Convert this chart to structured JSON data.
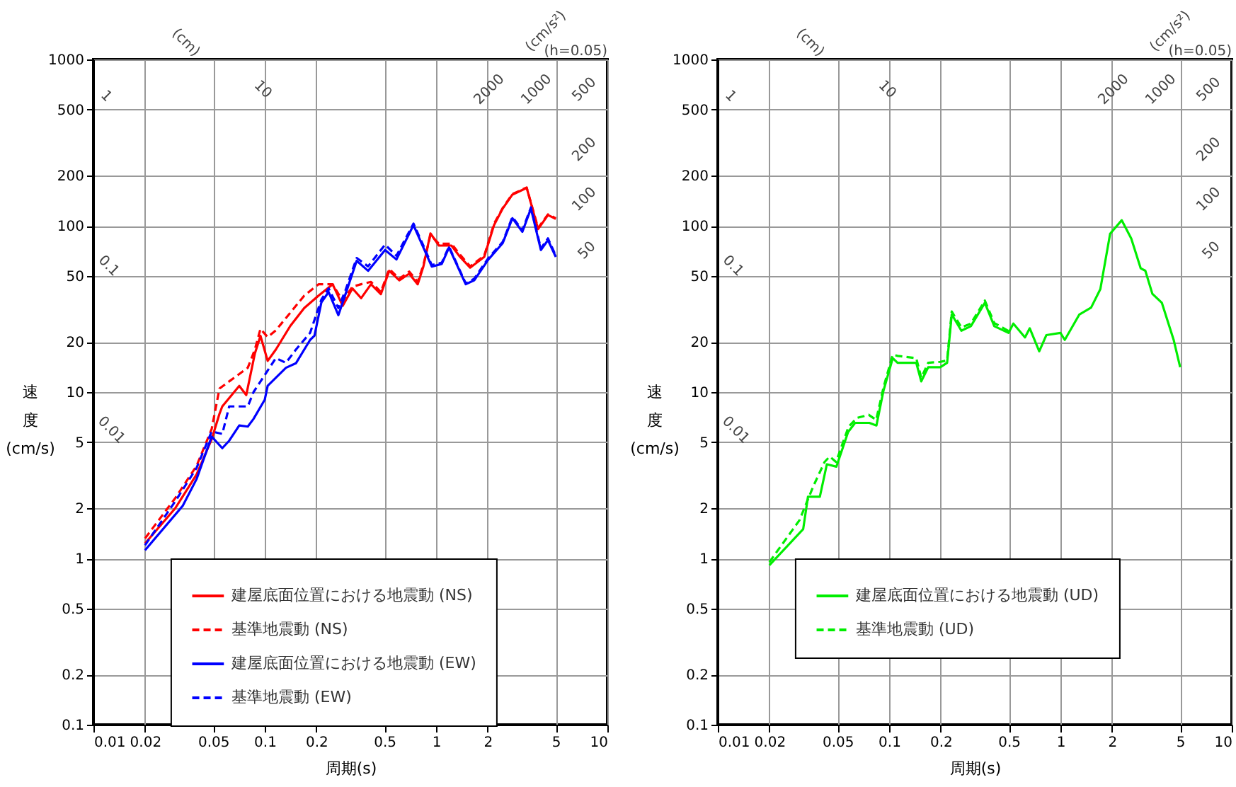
{
  "chart_data": [
    {
      "type": "line",
      "xlabel": "周期(s)",
      "ylabel": "速度(cm/s)",
      "log": "xy",
      "grid": true,
      "legend": "bottom",
      "xlim": [
        0.01,
        10
      ],
      "xticks": [
        0.01,
        0.02,
        0.05,
        0.1,
        0.2,
        0.5,
        1,
        2,
        5,
        10
      ],
      "ylim": [
        0.1,
        1000
      ],
      "yticks": [
        0.1,
        0.2,
        0.5,
        1,
        2,
        5,
        10,
        20,
        50,
        100,
        200,
        500,
        1000
      ],
      "annotations": [
        "(cm)",
        "(cm/s²)",
        "(h=0.05)",
        "1",
        "10",
        "0.1",
        "0.01",
        "2000",
        "1000",
        "500",
        "200",
        "100",
        "50"
      ],
      "series": [
        {
          "name": "建屋底面位置における地震動 (NS)",
          "color": "#ff0000",
          "line_style": "solid",
          "x": [
            0.02,
            0.03,
            0.04,
            0.049,
            0.0544,
            0.0565,
            0.071,
            0.078,
            0.0875,
            0.0944,
            0.104,
            0.116,
            0.141,
            0.17,
            0.206,
            0.249,
            0.285,
            0.325,
            0.365,
            0.417,
            0.476,
            0.533,
            0.61,
            0.697,
            0.781,
            0.843,
            0.927,
            1.04,
            1.23,
            1.38,
            1.58,
            1.91,
            2.18,
            2.45,
            2.79,
            3.38,
            3.94,
            4.5,
            5
          ],
          "values": [
            1.23,
            2.0,
            3.2,
            5.2,
            7.4,
            8.2,
            10.9,
            9.6,
            17,
            21.8,
            15.4,
            18,
            25,
            32,
            38,
            44.5,
            33,
            42,
            36.7,
            44.5,
            38.8,
            53.6,
            47,
            51.5,
            44.5,
            56.8,
            90,
            76,
            76,
            65,
            56,
            65,
            101,
            127,
            154,
            169,
            95.5,
            116,
            110
          ]
        },
        {
          "name": "基準地震動 (NS)",
          "color": "#ff0000",
          "line_style": "dashed",
          "x": [
            0.02,
            0.03,
            0.04,
            0.049,
            0.0544,
            0.062,
            0.0796,
            0.0875,
            0.0944,
            0.104,
            0.116,
            0.141,
            0.17,
            0.206,
            0.249,
            0.285,
            0.325,
            0.365,
            0.417,
            0.476,
            0.533,
            0.61,
            0.697,
            0.781,
            0.843,
            0.927,
            1.04,
            1.23,
            1.38,
            1.58,
            1.91,
            2.18,
            2.45,
            2.79,
            3.38,
            3.94,
            4.5,
            5
          ],
          "values": [
            1.32,
            2.3,
            3.6,
            6,
            10.5,
            11.6,
            14,
            18,
            24,
            21.4,
            23.5,
            30,
            38,
            44.5,
            44.5,
            35.3,
            43,
            44.5,
            46,
            40,
            55,
            48,
            53,
            46,
            58,
            88,
            78,
            78,
            67,
            57,
            66,
            103,
            128,
            155,
            170,
            97,
            117,
            111
          ]
        },
        {
          "name": "建屋底面位置における地震動 (EW)",
          "color": "#0000ff",
          "line_style": "solid",
          "x": [
            0.02,
            0.0332,
            0.04,
            0.049,
            0.0565,
            0.062,
            0.071,
            0.0796,
            0.086,
            0.1,
            0.104,
            0.133,
            0.152,
            0.184,
            0.195,
            0.214,
            0.236,
            0.269,
            0.296,
            0.344,
            0.401,
            0.504,
            0.587,
            0.738,
            0.843,
            0.944,
            1.08,
            1.19,
            1.49,
            1.67,
            2.02,
            2.45,
            2.79,
            3.19,
            3.58,
            4.09,
            4.5,
            5
          ],
          "values": [
            1.12,
            2.07,
            3.0,
            5.4,
            4.6,
            5.1,
            6.3,
            6.2,
            6.9,
            9.0,
            10.9,
            14,
            14.9,
            20.6,
            21.8,
            34.6,
            40,
            29,
            38.8,
            61.5,
            53.6,
            71.5,
            62.7,
            101,
            74,
            56.8,
            59,
            74,
            44.5,
            47,
            62.7,
            78.7,
            111,
            92,
            127,
            71.5,
            82,
            65
          ]
        },
        {
          "name": "基準地震動 (EW)",
          "color": "#0000ff",
          "line_style": "dashed",
          "x": [
            0.02,
            0.03,
            0.04,
            0.049,
            0.0565,
            0.062,
            0.0796,
            0.086,
            0.116,
            0.133,
            0.152,
            0.184,
            0.214,
            0.236,
            0.269,
            0.296,
            0.344,
            0.401,
            0.504,
            0.587,
            0.738,
            0.843,
            0.944,
            1.08,
            1.19,
            1.49,
            1.67,
            2.02,
            2.45,
            2.79,
            3.19,
            3.58,
            4.09,
            4.5,
            5
          ],
          "values": [
            1.2,
            2.2,
            3.5,
            5.8,
            5.6,
            8.2,
            8.2,
            10,
            16,
            15,
            18,
            22.7,
            36,
            42,
            32,
            41,
            64,
            57,
            77,
            66,
            103,
            76,
            58,
            60,
            75,
            45,
            48,
            64,
            80,
            113,
            94,
            129,
            73,
            84,
            66
          ]
        }
      ]
    },
    {
      "type": "line",
      "xlabel": "周期(s)",
      "ylabel": "速度(cm/s)",
      "log": "xy",
      "grid": true,
      "legend": "bottom",
      "xlim": [
        0.01,
        10
      ],
      "xticks": [
        0.01,
        0.02,
        0.05,
        0.1,
        0.2,
        0.5,
        1,
        2,
        5,
        10
      ],
      "ylim": [
        0.1,
        1000
      ],
      "yticks": [
        0.1,
        0.2,
        0.5,
        1,
        2,
        5,
        10,
        20,
        50,
        100,
        200,
        500,
        1000
      ],
      "annotations": [
        "(cm)",
        "(cm/s²)",
        "(h=0.05)",
        "1",
        "10",
        "0.1",
        "0.01",
        "2000",
        "1000",
        "500",
        "200",
        "100",
        "50"
      ],
      "series": [
        {
          "name": "建屋底面位置における地震動 (UD)",
          "color": "#00ee00",
          "line_style": "solid",
          "x": [
            0.02,
            0.0315,
            0.0336,
            0.0394,
            0.0433,
            0.0492,
            0.0576,
            0.0633,
            0.0766,
            0.0843,
            0.0927,
            0.105,
            0.112,
            0.144,
            0.154,
            0.169,
            0.199,
            0.218,
            0.232,
            0.264,
            0.3,
            0.362,
            0.411,
            0.498,
            0.531,
            0.621,
            0.662,
            0.752,
            0.827,
            1.0,
            1.06,
            1.29,
            1.51,
            1.71,
            1.95,
            2.28,
            2.59,
            2.94,
            3.13,
            3.44,
            3.91,
            4.58,
            5
          ],
          "values": [
            0.91,
            1.5,
            2.35,
            2.35,
            3.68,
            3.56,
            5.75,
            6.53,
            6.53,
            6.3,
            10.2,
            16,
            15,
            15,
            11.6,
            14.1,
            14.1,
            15,
            29.3,
            23.4,
            24.9,
            34.4,
            24.9,
            22.7,
            25.8,
            21.3,
            24.2,
            17.6,
            22,
            22.7,
            20.6,
            29.3,
            32.2,
            41.6,
            89.5,
            108,
            83.9,
            55.5,
            53.7,
            39,
            34.4,
            20.6,
            14.1
          ]
        },
        {
          "name": "基準地震動 (UD)",
          "color": "#00ee00",
          "line_style": "dashed",
          "x": [
            0.02,
            0.03,
            0.036,
            0.042,
            0.045,
            0.049,
            0.058,
            0.065,
            0.076,
            0.084,
            0.093,
            0.105,
            0.112,
            0.144,
            0.154,
            0.169,
            0.199,
            0.218,
            0.232,
            0.264,
            0.3,
            0.362,
            0.411,
            0.498
          ],
          "values": [
            0.95,
            1.7,
            2.7,
            3.8,
            4.1,
            3.8,
            6.2,
            7.0,
            7.3,
            6.8,
            10.8,
            16.8,
            16.5,
            16,
            12.2,
            15,
            15.2,
            15.5,
            30.5,
            24.5,
            25.8,
            35.5,
            26,
            23.3
          ]
        }
      ]
    }
  ]
}
